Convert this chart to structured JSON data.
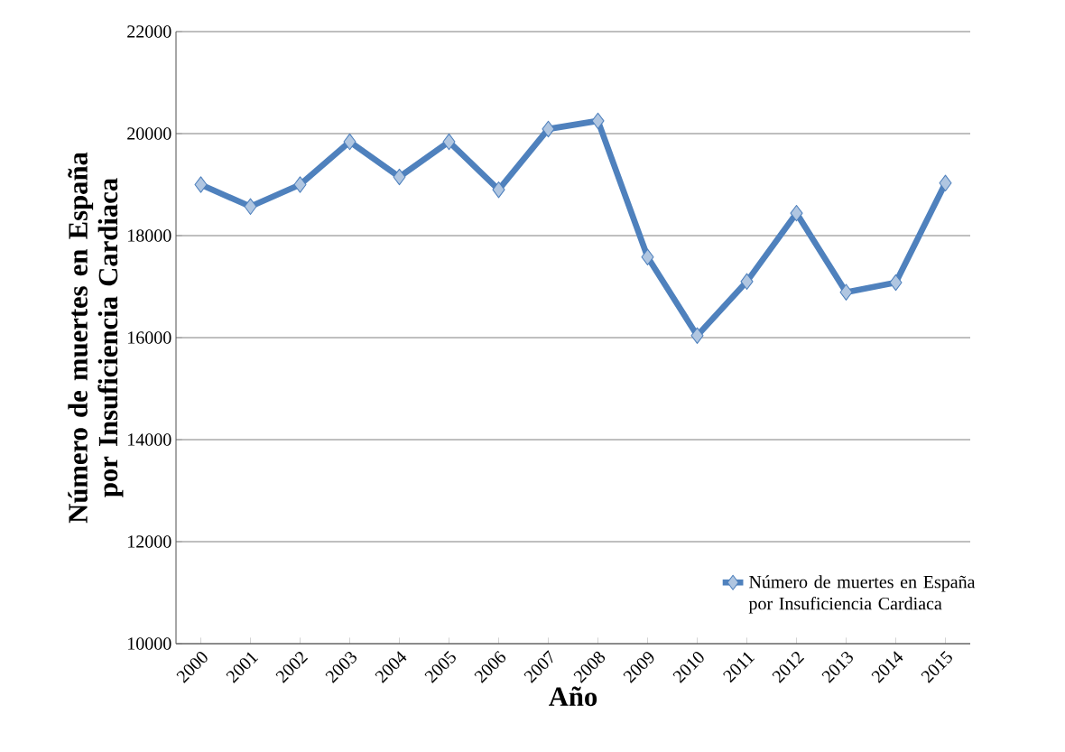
{
  "chart_data": {
    "type": "line",
    "xlabel": "Año",
    "ylabel": "Número de muertes en España por Insuficiencia Cardiaca",
    "categories": [
      "2000",
      "2001",
      "2002",
      "2003",
      "2004",
      "2005",
      "2006",
      "2007",
      "2008",
      "2009",
      "2010",
      "2011",
      "2012",
      "2013",
      "2014",
      "2015"
    ],
    "series": [
      {
        "name": "Número de muertes en España por Insuficiencia Cardiaca",
        "color": "#4f81bd",
        "values": [
          19000,
          18570,
          19000,
          19840,
          19150,
          19840,
          18900,
          20090,
          20250,
          17580,
          16040,
          17100,
          18440,
          16890,
          17080,
          19030
        ]
      }
    ],
    "ylim": [
      10000,
      22000
    ],
    "yticks": [
      10000,
      12000,
      14000,
      16000,
      18000,
      20000,
      22000
    ],
    "grid": "y",
    "legend": "bottom right",
    "marker": "diamond",
    "line_style": "solid"
  }
}
